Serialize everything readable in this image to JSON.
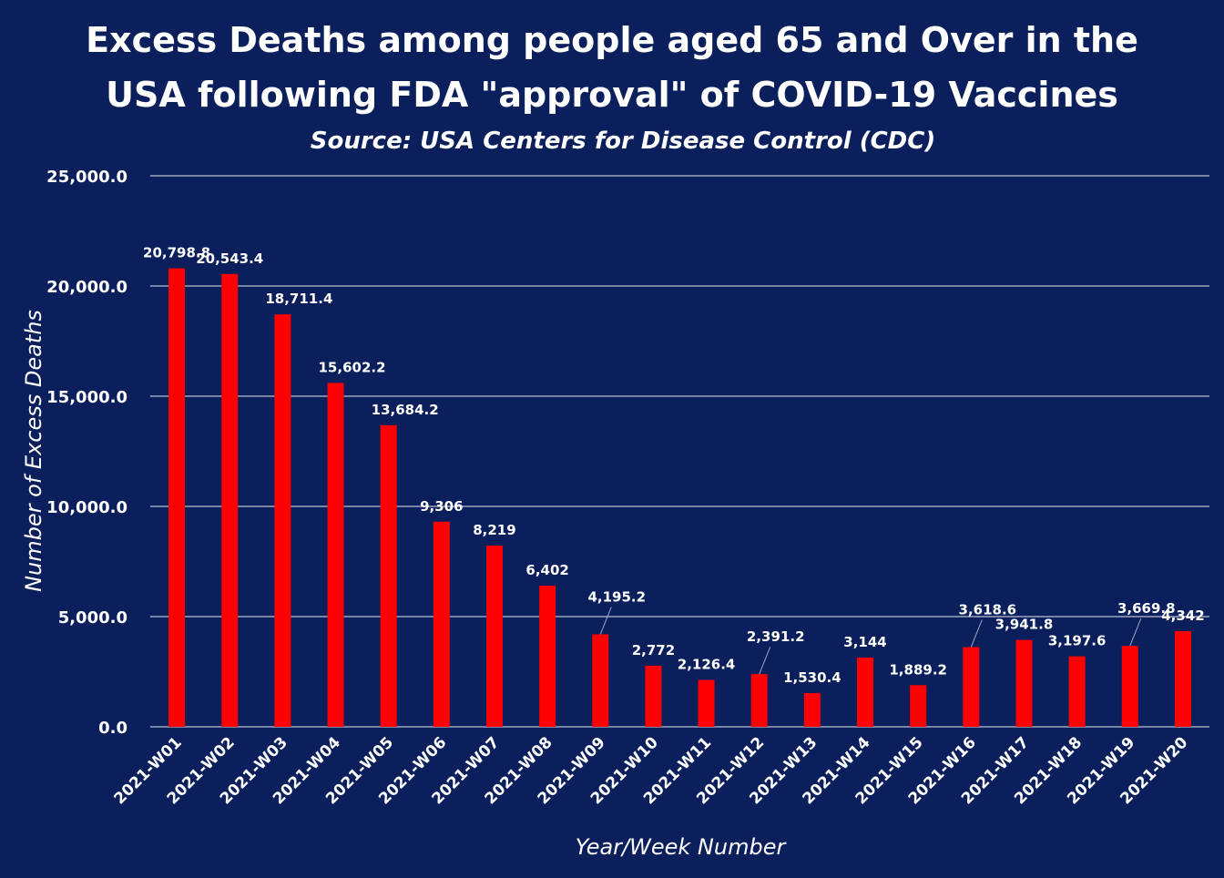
{
  "title_line1": "Excess Deaths among people aged 65 and Over in the",
  "title_line2": "USA following FDA \"approval\" of COVID-19 Vaccines",
  "subtitle": "Source: USA Centers for Disease Control (CDC)",
  "colors": {
    "background": "#0a1f5c",
    "bar": "#ff0000",
    "text": "#ffffff",
    "grid": "#ffffff"
  },
  "chart_data": {
    "type": "bar",
    "xlabel": "Year/Week Number",
    "ylabel": "Number of Excess Deaths",
    "ylim": [
      0,
      25000
    ],
    "yticks": [
      0,
      5000,
      10000,
      15000,
      20000,
      25000
    ],
    "ytick_labels": [
      "0.0",
      "5,000.0",
      "10,000.0",
      "15,000.0",
      "20,000.0",
      "25,000.0"
    ],
    "grid": true,
    "categories": [
      "2021-W01",
      "2021-W02",
      "2021-W03",
      "2021-W04",
      "2021-W05",
      "2021-W06",
      "2021-W07",
      "2021-W08",
      "2021-W09",
      "2021-W10",
      "2021-W11",
      "2021-W12",
      "2021-W13",
      "2021-W14",
      "2021-W15",
      "2021-W16",
      "2021-W17",
      "2021-W18",
      "2021-W19",
      "2021-W20"
    ],
    "values": [
      20798.8,
      20543.4,
      18711.4,
      15602.2,
      13684.2,
      9306,
      8219,
      6402,
      4195.2,
      2772,
      2126.4,
      2391.2,
      1530.4,
      3144,
      1889.2,
      3618.6,
      3941.8,
      3197.6,
      3669.8,
      4342
    ],
    "value_labels": [
      "20,798.8",
      "20,543.4",
      "18,711.4",
      "15,602.2",
      "13,684.2",
      "9,306",
      "8,219",
      "6,402",
      "4,195.2",
      "2,772",
      "2,126.4",
      "2,391.2",
      "1,530.4",
      "3,144",
      "1,889.2",
      "3,618.6",
      "3,941.8",
      "3,197.6",
      "3,669.8",
      "4,342"
    ]
  }
}
